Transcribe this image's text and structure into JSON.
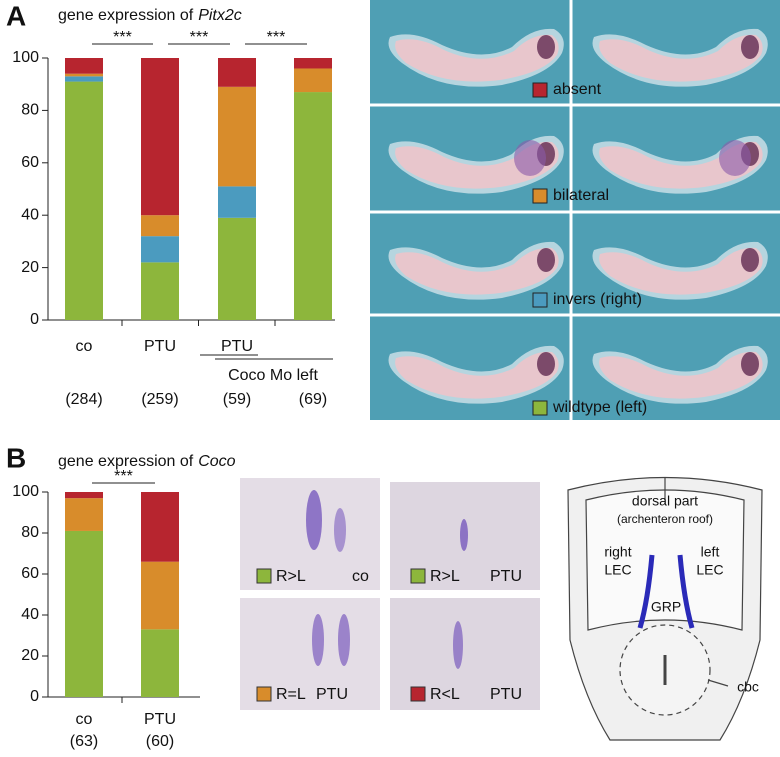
{
  "chart_data": [
    {
      "type": "stacked_bar",
      "panel": "A",
      "title": "gene expression of",
      "title_gene": "Pitx2c",
      "categories": [
        "co",
        "PTU",
        "PTU",
        null
      ],
      "group_label": "Coco Mo left",
      "n": [
        "(284)",
        "(259)",
        "(59)",
        "(69)"
      ],
      "significance": [
        "***",
        "***",
        "***"
      ],
      "series": [
        {
          "name": "wildtype (left)",
          "color": "#8db63c",
          "values": [
            91,
            22,
            39,
            87
          ]
        },
        {
          "name": "invers (right)",
          "color": "#4b9bbf",
          "values": [
            2,
            10,
            12,
            0
          ]
        },
        {
          "name": "bilateral",
          "color": "#d88c2b",
          "values": [
            1,
            8,
            38,
            9
          ]
        },
        {
          "name": "absent",
          "color": "#b7252f",
          "values": [
            6,
            60,
            11,
            4
          ]
        }
      ],
      "ylim": [
        0,
        100
      ],
      "yticks": [
        0,
        20,
        40,
        60,
        80,
        100
      ]
    },
    {
      "type": "stacked_bar",
      "panel": "B",
      "title": "gene expression of",
      "title_gene": "Coco",
      "categories": [
        "co",
        "PTU"
      ],
      "n": [
        "(63)",
        "(60)"
      ],
      "significance": [
        "***"
      ],
      "series": [
        {
          "name": "R>L",
          "color": "#8db63c",
          "values": [
            81,
            33
          ]
        },
        {
          "name": "R=L",
          "color": "#d88c2b",
          "values": [
            16,
            33
          ]
        },
        {
          "name": "R<L",
          "color": "#b7252f",
          "values": [
            3,
            34
          ]
        }
      ],
      "ylim": [
        0,
        100
      ],
      "yticks": [
        0,
        20,
        40,
        60,
        80,
        100
      ]
    }
  ],
  "panel_b_images": {
    "conditions": [
      "co",
      "PTU",
      "PTU",
      "PTU"
    ]
  },
  "diagram": {
    "dorsal": "dorsal part",
    "roof": "(archenteron roof)",
    "right": "right",
    "right_lec": "LEC",
    "left": "left",
    "left_lec": "LEC",
    "grp": "GRP",
    "cbc": "cbc"
  }
}
